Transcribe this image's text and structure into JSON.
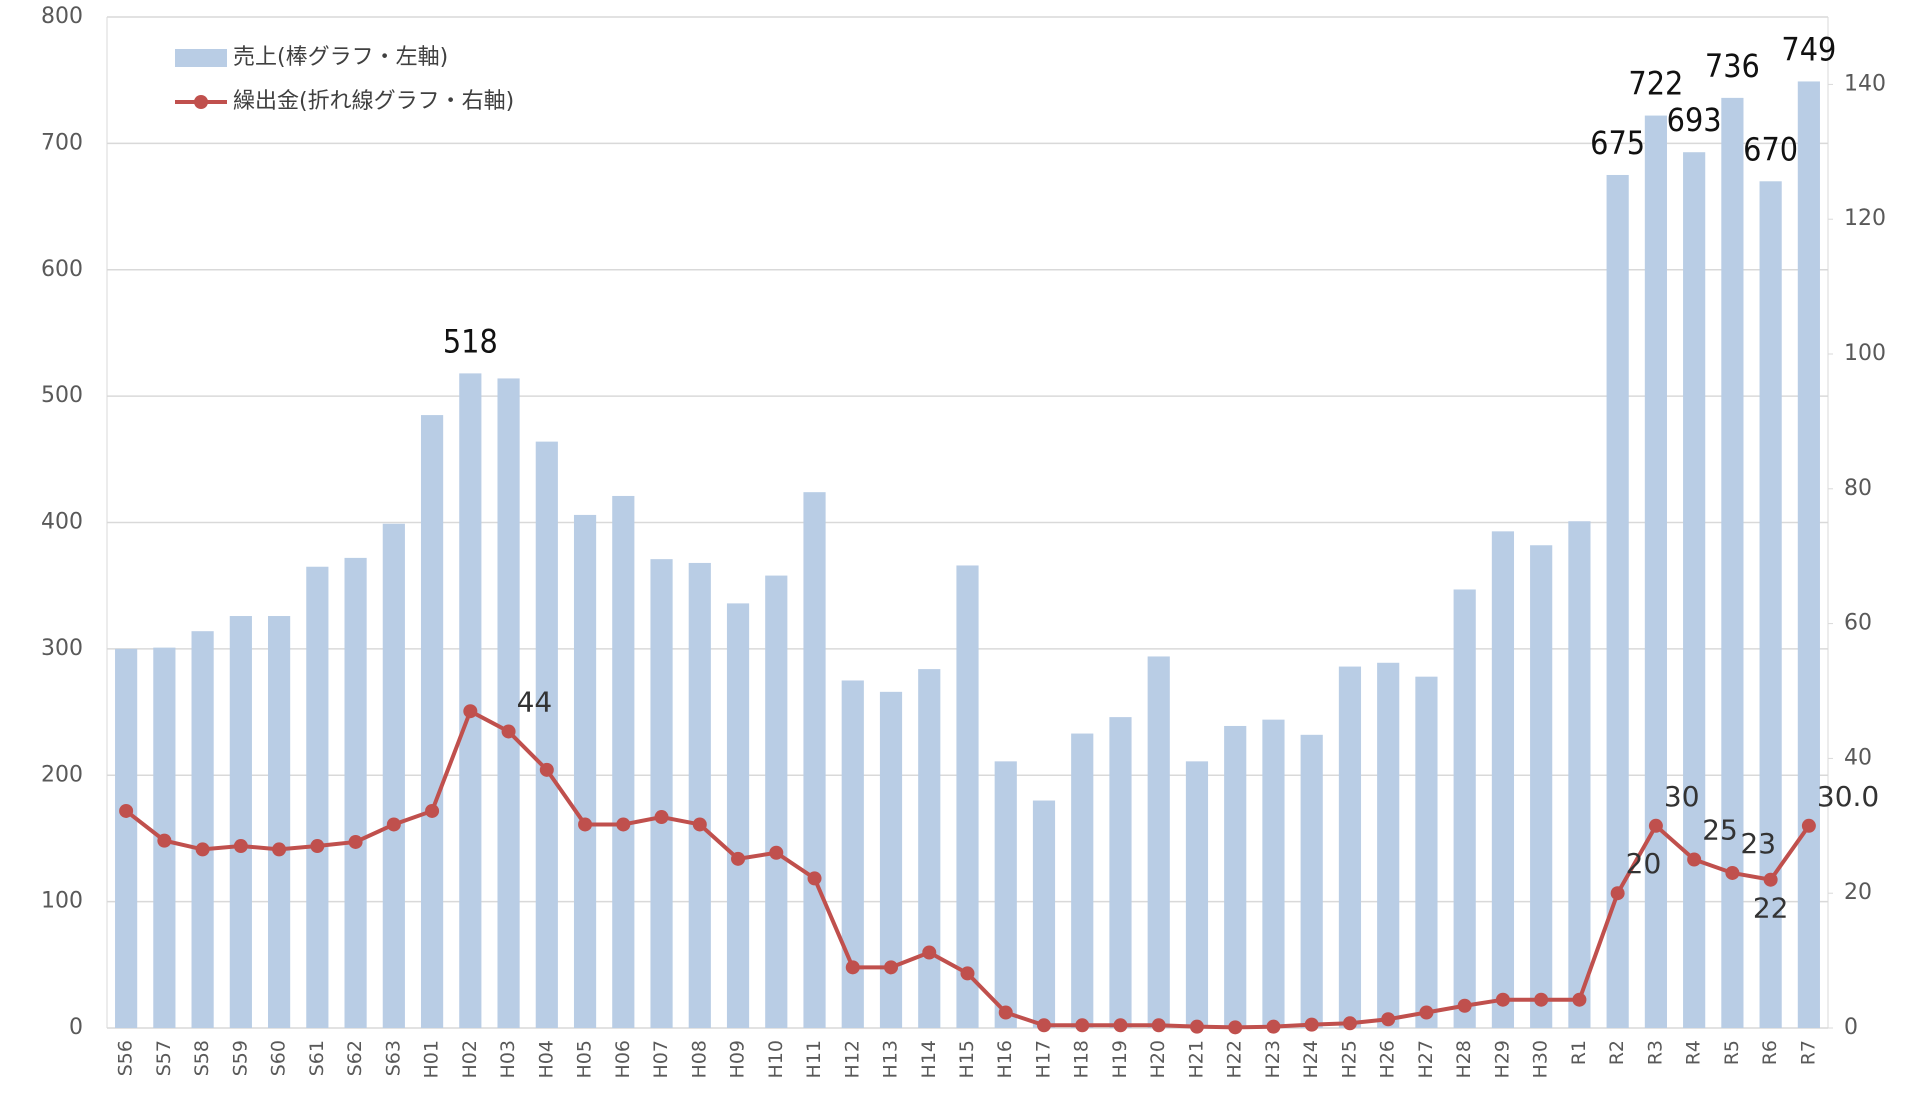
{
  "chart_data": {
    "type": "bar-line",
    "categories": [
      "S56",
      "S57",
      "S58",
      "S59",
      "S60",
      "S61",
      "S62",
      "S63",
      "H01",
      "H02",
      "H03",
      "H04",
      "H05",
      "H06",
      "H07",
      "H08",
      "H09",
      "H10",
      "H11",
      "H12",
      "H13",
      "H14",
      "H15",
      "H16",
      "H17",
      "H18",
      "H19",
      "H20",
      "H21",
      "H22",
      "H23",
      "H24",
      "H25",
      "H26",
      "H27",
      "H28",
      "H29",
      "H30",
      "R1",
      "R2",
      "R3",
      "R4",
      "R5",
      "R6",
      "R7"
    ],
    "series": [
      {
        "name": "売上(棒グラフ・左軸)",
        "type": "bar",
        "color": "#b9cde5",
        "values": [
          300,
          301,
          314,
          326,
          326,
          365,
          372,
          399,
          485,
          518,
          514,
          464,
          406,
          421,
          371,
          368,
          336,
          358,
          424,
          275,
          266,
          284,
          366,
          211,
          180,
          233,
          246,
          294,
          211,
          239,
          244,
          232,
          286,
          289,
          278,
          347,
          393,
          382,
          401,
          675,
          722,
          693,
          736,
          670,
          749
        ],
        "value_labels": [
          null,
          null,
          null,
          null,
          null,
          null,
          null,
          null,
          null,
          "518",
          null,
          null,
          null,
          null,
          null,
          null,
          null,
          null,
          null,
          null,
          null,
          null,
          null,
          null,
          null,
          null,
          null,
          null,
          null,
          null,
          null,
          null,
          null,
          null,
          null,
          null,
          null,
          null,
          null,
          "675",
          "722",
          "693",
          "736",
          "670",
          "749"
        ]
      },
      {
        "name": "繰出金(折れ線グラフ・右軸)",
        "type": "line",
        "axis": "y2",
        "color": "#c0504d",
        "values": [
          32.2,
          27.8,
          26.5,
          27,
          26.5,
          27,
          27.6,
          30.2,
          32.2,
          47,
          44,
          38.3,
          30.2,
          30.2,
          31.3,
          30.2,
          25.1,
          26,
          22.2,
          9,
          9,
          11.2,
          8.1,
          2.3,
          0.4,
          0.4,
          0.4,
          0.4,
          0.2,
          0.1,
          0.2,
          0.5,
          0.7,
          1.3,
          2.3,
          3.3,
          4.2,
          4.2,
          4.2,
          20,
          30,
          25,
          23,
          22,
          30
        ],
        "value_labels": [
          null,
          null,
          null,
          null,
          null,
          null,
          null,
          null,
          null,
          null,
          "44",
          null,
          null,
          null,
          null,
          null,
          null,
          null,
          null,
          null,
          null,
          null,
          null,
          null,
          null,
          null,
          null,
          null,
          null,
          null,
          null,
          null,
          null,
          null,
          null,
          null,
          null,
          null,
          null,
          "20",
          "30",
          "25",
          "23",
          "22",
          "30.0"
        ]
      }
    ],
    "ylim": [
      0,
      800
    ],
    "yticks": [
      0,
      100,
      200,
      300,
      400,
      500,
      600,
      700,
      800
    ],
    "y2lim": [
      0,
      150
    ],
    "y2ticks": [
      0,
      20,
      40,
      60,
      80,
      100,
      120,
      140
    ],
    "grid": true,
    "legend": "top-left"
  }
}
